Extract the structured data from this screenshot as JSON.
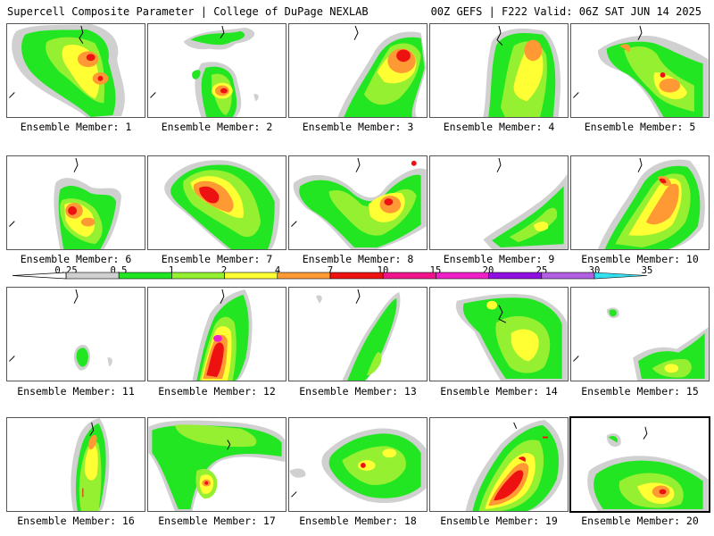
{
  "header": {
    "title_left": "Supercell Composite Parameter | College of DuPage NEXLAB",
    "title_right": "00Z GEFS | F222 Valid: 06Z SAT JUN 14 2025"
  },
  "colorbar": {
    "ticks": [
      "0.25",
      "0.5",
      "1",
      "2",
      "4",
      "7",
      "10",
      "15",
      "20",
      "25",
      "30",
      "35"
    ],
    "colors": [
      "#d0d0d0",
      "#22e622",
      "#96f032",
      "#ffff33",
      "#ff9933",
      "#ee1111",
      "#f0148c",
      "#f020c8",
      "#9010e0",
      "#b060e0",
      "#33e0f0"
    ]
  },
  "panels": [
    {
      "label": "Ensemble Member: 1"
    },
    {
      "label": "Ensemble Member: 2"
    },
    {
      "label": "Ensemble Member: 3"
    },
    {
      "label": "Ensemble Member: 4"
    },
    {
      "label": "Ensemble Member: 5"
    },
    {
      "label": "Ensemble Member: 6"
    },
    {
      "label": "Ensemble Member: 7"
    },
    {
      "label": "Ensemble Member: 8"
    },
    {
      "label": "Ensemble Member: 9"
    },
    {
      "label": "Ensemble Member: 10"
    },
    {
      "label": "Ensemble Member: 11"
    },
    {
      "label": "Ensemble Member: 12"
    },
    {
      "label": "Ensemble Member: 13"
    },
    {
      "label": "Ensemble Member: 14"
    },
    {
      "label": "Ensemble Member: 15"
    },
    {
      "label": "Ensemble Member: 16"
    },
    {
      "label": "Ensemble Member: 17"
    },
    {
      "label": "Ensemble Member: 18"
    },
    {
      "label": "Ensemble Member: 19"
    },
    {
      "label": "Ensemble Member: 20"
    }
  ]
}
